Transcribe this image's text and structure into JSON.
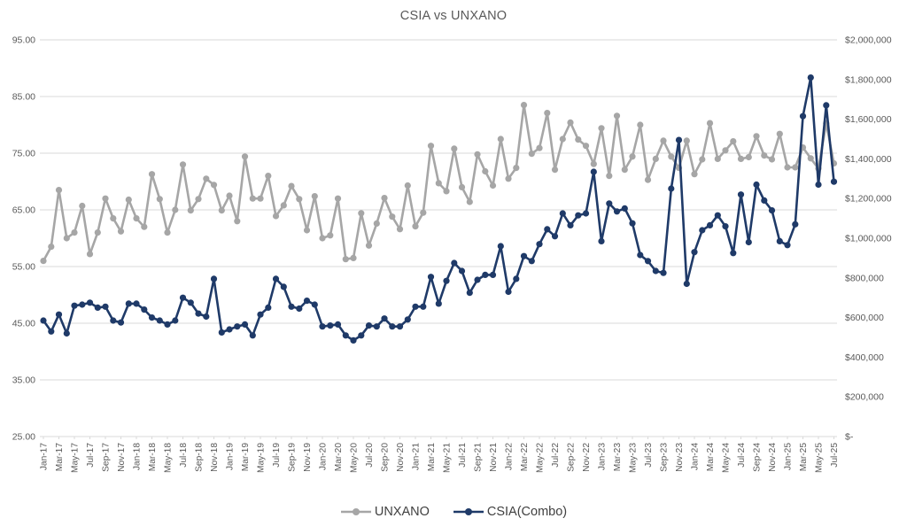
{
  "page": {
    "title": "CSIA vs UNXANO"
  },
  "colors": {
    "background": "#ffffff",
    "text": "#595959",
    "grid": "#d9d9d9",
    "unxano": "#a6a6a6",
    "csia": "#1f3a68"
  },
  "chart_data": {
    "type": "line",
    "title": "CSIA vs UNXANO",
    "grid": "horizontal",
    "legend_position": "bottom",
    "x_axis": {
      "tick_every": 2,
      "label_rotation_deg": 90
    },
    "left_axis": {
      "min": 25,
      "max": 95,
      "step": 10,
      "labels": [
        "95.00",
        "85.00",
        "75.00",
        "65.00",
        "55.00",
        "45.00",
        "35.00",
        "25.00"
      ]
    },
    "right_axis": {
      "min": 0,
      "max": 2000000,
      "step": 200000,
      "labels": [
        "$2,000,000",
        "$1,800,000",
        "$1,600,000",
        "$1,400,000",
        "$1,200,000",
        "$1,000,000",
        "$800,000",
        "$600,000",
        "$400,000",
        "$200,000",
        "$-"
      ]
    },
    "x": [
      "Jan-17",
      "Feb-17",
      "Mar-17",
      "Apr-17",
      "May-17",
      "Jun-17",
      "Jul-17",
      "Aug-17",
      "Sep-17",
      "Oct-17",
      "Nov-17",
      "Dec-17",
      "Jan-18",
      "Feb-18",
      "Mar-18",
      "Apr-18",
      "May-18",
      "Jun-18",
      "Jul-18",
      "Aug-18",
      "Sep-18",
      "Oct-18",
      "Nov-18",
      "Dec-18",
      "Jan-19",
      "Feb-19",
      "Mar-19",
      "Apr-19",
      "May-19",
      "Jun-19",
      "Jul-19",
      "Aug-19",
      "Sep-19",
      "Oct-19",
      "Nov-19",
      "Dec-19",
      "Jan-20",
      "Feb-20",
      "Mar-20",
      "Apr-20",
      "May-20",
      "Jun-20",
      "Jul-20",
      "Aug-20",
      "Sep-20",
      "Oct-20",
      "Nov-20",
      "Dec-20",
      "Jan-21",
      "Feb-21",
      "Mar-21",
      "Apr-21",
      "May-21",
      "Jun-21",
      "Jul-21",
      "Aug-21",
      "Sep-21",
      "Oct-21",
      "Nov-21",
      "Dec-21",
      "Jan-22",
      "Feb-22",
      "Mar-22",
      "Apr-22",
      "May-22",
      "Jun-22",
      "Jul-22",
      "Aug-22",
      "Sep-22",
      "Oct-22",
      "Nov-22",
      "Dec-22",
      "Jan-23",
      "Feb-23",
      "Mar-23",
      "Apr-23",
      "May-23",
      "Jun-23",
      "Jul-23",
      "Aug-23",
      "Sep-23",
      "Oct-23",
      "Nov-23",
      "Dec-23",
      "Jan-24",
      "Feb-24",
      "Mar-24",
      "Apr-24",
      "May-24",
      "Jun-24",
      "Jul-24",
      "Aug-24",
      "Sep-24",
      "Oct-24",
      "Nov-24",
      "Dec-24",
      "Jan-25",
      "Feb-25",
      "Mar-25",
      "Apr-25",
      "May-25",
      "Jun-25",
      "Jul-25"
    ],
    "series": [
      {
        "name": "UNXANO",
        "axis": "left",
        "color": "#a6a6a6",
        "marker": "circle",
        "values": [
          56.0,
          58.5,
          68.5,
          60.0,
          61.0,
          65.7,
          57.2,
          61.0,
          67.0,
          63.5,
          61.2,
          66.8,
          63.5,
          62.0,
          71.3,
          66.9,
          61.0,
          65.0,
          73.0,
          64.9,
          66.9,
          70.5,
          69.4,
          64.9,
          67.5,
          63.0,
          74.4,
          67.0,
          67.0,
          71.0,
          63.9,
          65.8,
          69.2,
          66.9,
          61.4,
          67.4,
          60.0,
          60.5,
          67.0,
          56.3,
          56.5,
          64.4,
          58.7,
          62.6,
          67.1,
          63.8,
          61.6,
          69.3,
          62.1,
          64.5,
          76.3,
          69.7,
          68.3,
          75.8,
          69.0,
          66.4,
          74.8,
          71.8,
          69.3,
          77.5,
          70.5,
          72.4,
          83.5,
          74.9,
          75.9,
          82.1,
          72.1,
          77.5,
          80.4,
          77.4,
          76.3,
          73.1,
          79.4,
          71.0,
          81.6,
          72.1,
          74.4,
          80.0,
          70.3,
          74.0,
          77.2,
          74.4,
          72.4,
          77.2,
          71.3,
          73.9,
          80.3,
          74.0,
          75.5,
          77.1,
          74.0,
          74.3,
          78.0,
          74.6,
          73.9,
          78.4,
          72.5,
          72.5,
          76.0,
          74.1,
          72.3,
          80.3,
          73.2
        ]
      },
      {
        "name": "CSIA(Combo)",
        "axis": "right",
        "color": "#1f3a68",
        "marker": "circle",
        "values": [
          585000,
          530000,
          615000,
          520000,
          660000,
          665000,
          675000,
          650000,
          655000,
          585000,
          575000,
          670000,
          670000,
          640000,
          600000,
          585000,
          565000,
          585000,
          700000,
          675000,
          620000,
          605000,
          795000,
          525000,
          540000,
          555000,
          565000,
          510000,
          615000,
          650000,
          795000,
          755000,
          655000,
          645000,
          685000,
          665000,
          555000,
          560000,
          565000,
          510000,
          485000,
          510000,
          560000,
          555000,
          595000,
          555000,
          555000,
          590000,
          655000,
          655000,
          805000,
          670000,
          785000,
          875000,
          835000,
          725000,
          790000,
          815000,
          815000,
          960000,
          730000,
          795000,
          910000,
          885000,
          970000,
          1045000,
          1010000,
          1125000,
          1065000,
          1115000,
          1125000,
          1335000,
          985000,
          1175000,
          1135000,
          1150000,
          1075000,
          915000,
          885000,
          835000,
          825000,
          1250000,
          1495000,
          770000,
          930000,
          1040000,
          1065000,
          1115000,
          1060000,
          925000,
          1220000,
          980000,
          1270000,
          1190000,
          1140000,
          985000,
          965000,
          1070000,
          1615000,
          1810000,
          1270000,
          1670000,
          1285000
        ]
      }
    ]
  }
}
